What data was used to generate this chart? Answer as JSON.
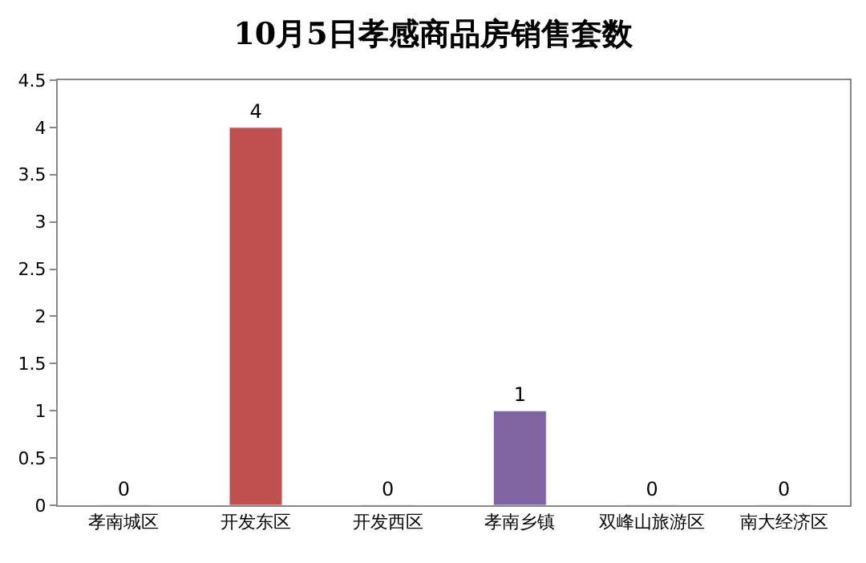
{
  "chart_data": {
    "type": "bar",
    "title": "10月5日孝感商品房销售套数",
    "categories": [
      "孝南城区",
      "开发东区",
      "开发西区",
      "孝南乡镇",
      "双峰山旅游区",
      "南大经济区"
    ],
    "values": [
      0,
      4,
      0,
      1,
      0,
      0
    ],
    "colors": [
      null,
      "#c0504d",
      null,
      "#8064a2",
      null,
      null
    ],
    "ylim": [
      0,
      4.5
    ],
    "yticks": [
      0,
      0.5,
      1,
      1.5,
      2,
      2.5,
      3,
      3.5,
      4,
      4.5
    ],
    "data_labels": true
  }
}
